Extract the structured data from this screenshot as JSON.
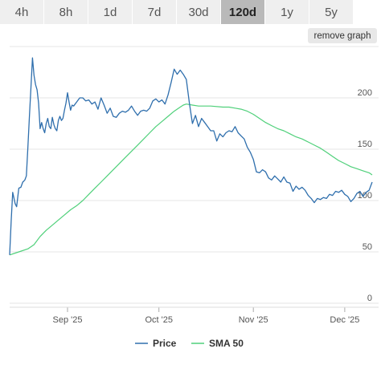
{
  "range_tabs": [
    {
      "label": "4h",
      "active": false
    },
    {
      "label": "8h",
      "active": false
    },
    {
      "label": "1d",
      "active": false
    },
    {
      "label": "7d",
      "active": false
    },
    {
      "label": "30d",
      "active": false
    },
    {
      "label": "120d",
      "active": true
    },
    {
      "label": "1y",
      "active": false
    },
    {
      "label": "5y",
      "active": false
    }
  ],
  "remove_graph_label": "remove graph",
  "chart_data": {
    "type": "line",
    "x_ticks": [
      {
        "label": "Sep '25",
        "x": 19
      },
      {
        "label": "Oct '25",
        "x": 49
      },
      {
        "label": "Nov '25",
        "x": 80
      },
      {
        "label": "Dec '25",
        "x": 110
      }
    ],
    "ylim": [
      0,
      250
    ],
    "y_ticks": [
      0,
      50,
      100,
      150,
      200
    ],
    "grid": true,
    "legend_position": "bottom",
    "colors": {
      "price": "#2f6fad",
      "sma": "#4fd07a",
      "grid": "#e6e6e6"
    },
    "series": [
      {
        "name": "Price",
        "color": "#2f6fad",
        "points": [
          [
            0,
            47
          ],
          [
            0.5,
            80
          ],
          [
            1,
            108
          ],
          [
            1.8,
            97
          ],
          [
            2.3,
            94
          ],
          [
            3,
            112
          ],
          [
            3.7,
            113
          ],
          [
            4.3,
            118
          ],
          [
            5,
            120
          ],
          [
            5.5,
            124
          ],
          [
            6,
            152
          ],
          [
            6.5,
            182
          ],
          [
            7,
            210
          ],
          [
            7.5,
            239
          ],
          [
            8,
            222
          ],
          [
            8.5,
            213
          ],
          [
            9,
            208
          ],
          [
            9.5,
            195
          ],
          [
            10,
            170
          ],
          [
            10.5,
            176
          ],
          [
            11,
            170
          ],
          [
            11.5,
            166
          ],
          [
            12,
            175
          ],
          [
            12.5,
            180
          ],
          [
            13,
            172
          ],
          [
            13.5,
            170
          ],
          [
            14,
            181
          ],
          [
            14.5,
            174
          ],
          [
            15,
            170
          ],
          [
            15.5,
            168
          ],
          [
            16,
            178
          ],
          [
            16.5,
            182
          ],
          [
            17,
            178
          ],
          [
            17.5,
            180
          ],
          [
            18,
            188
          ],
          [
            18.5,
            195
          ],
          [
            19,
            205
          ],
          [
            19.5,
            196
          ],
          [
            20,
            188
          ],
          [
            20.5,
            193
          ],
          [
            21,
            192
          ],
          [
            22,
            196
          ],
          [
            23,
            200
          ],
          [
            24,
            200
          ],
          [
            25,
            197
          ],
          [
            26,
            198
          ],
          [
            27,
            194
          ],
          [
            28,
            196
          ],
          [
            29,
            189
          ],
          [
            30,
            200
          ],
          [
            31,
            193
          ],
          [
            32,
            185
          ],
          [
            33,
            190
          ],
          [
            34,
            182
          ],
          [
            35,
            181
          ],
          [
            36,
            185
          ],
          [
            37,
            187
          ],
          [
            38,
            186
          ],
          [
            39,
            188
          ],
          [
            40,
            192
          ],
          [
            41,
            187
          ],
          [
            42,
            183
          ],
          [
            43,
            187
          ],
          [
            44,
            188
          ],
          [
            45,
            187
          ],
          [
            46,
            190
          ],
          [
            47,
            197
          ],
          [
            48,
            199
          ],
          [
            49,
            196
          ],
          [
            50,
            198
          ],
          [
            51,
            194
          ],
          [
            52,
            203
          ],
          [
            53,
            215
          ],
          [
            54,
            228
          ],
          [
            55,
            223
          ],
          [
            56,
            227
          ],
          [
            57,
            223
          ],
          [
            58,
            218
          ],
          [
            59,
            195
          ],
          [
            60,
            175
          ],
          [
            61,
            183
          ],
          [
            62,
            172
          ],
          [
            63,
            180
          ],
          [
            64,
            176
          ],
          [
            65,
            172
          ],
          [
            66,
            168
          ],
          [
            67,
            168
          ],
          [
            68,
            158
          ],
          [
            69,
            165
          ],
          [
            70,
            162
          ],
          [
            71,
            166
          ],
          [
            72,
            168
          ],
          [
            73,
            167
          ],
          [
            74,
            172
          ],
          [
            75,
            166
          ],
          [
            76,
            163
          ],
          [
            77,
            160
          ],
          [
            78,
            152
          ],
          [
            79,
            147
          ],
          [
            80,
            140
          ],
          [
            81,
            128
          ],
          [
            82,
            127
          ],
          [
            83,
            130
          ],
          [
            84,
            128
          ],
          [
            85,
            122
          ],
          [
            86,
            120
          ],
          [
            87,
            124
          ],
          [
            88,
            121
          ],
          [
            89,
            118
          ],
          [
            90,
            123
          ],
          [
            91,
            118
          ],
          [
            92,
            117
          ],
          [
            93,
            109
          ],
          [
            94,
            114
          ],
          [
            95,
            111
          ],
          [
            96,
            113
          ],
          [
            97,
            110
          ],
          [
            98,
            105
          ],
          [
            99,
            102
          ],
          [
            100,
            98
          ],
          [
            101,
            102
          ],
          [
            102,
            101
          ],
          [
            103,
            103
          ],
          [
            104,
            102
          ],
          [
            105,
            106
          ],
          [
            106,
            105
          ],
          [
            107,
            109
          ],
          [
            108,
            108
          ],
          [
            109,
            110
          ],
          [
            110,
            106
          ],
          [
            111,
            104
          ],
          [
            112,
            99
          ],
          [
            113,
            102
          ],
          [
            114,
            107
          ],
          [
            115,
            109
          ],
          [
            116,
            104
          ],
          [
            117,
            108
          ],
          [
            118,
            110
          ],
          [
            119,
            118
          ]
        ]
      },
      {
        "name": "SMA 50",
        "color": "#4fd07a",
        "points": [
          [
            0,
            47
          ],
          [
            3,
            50
          ],
          [
            6,
            53
          ],
          [
            8,
            57
          ],
          [
            10,
            65
          ],
          [
            12,
            71
          ],
          [
            14,
            76
          ],
          [
            16,
            81
          ],
          [
            18,
            86
          ],
          [
            20,
            91
          ],
          [
            22,
            95
          ],
          [
            24,
            100
          ],
          [
            26,
            106
          ],
          [
            28,
            112
          ],
          [
            30,
            118
          ],
          [
            32,
            124
          ],
          [
            34,
            130
          ],
          [
            36,
            136
          ],
          [
            38,
            142
          ],
          [
            40,
            148
          ],
          [
            42,
            154
          ],
          [
            44,
            160
          ],
          [
            46,
            166
          ],
          [
            48,
            172
          ],
          [
            50,
            177
          ],
          [
            52,
            182
          ],
          [
            54,
            187
          ],
          [
            56,
            191
          ],
          [
            57,
            193
          ],
          [
            58,
            194
          ],
          [
            60,
            193
          ],
          [
            62,
            192
          ],
          [
            66,
            192
          ],
          [
            70,
            191
          ],
          [
            72,
            191
          ],
          [
            74,
            190
          ],
          [
            76,
            189
          ],
          [
            78,
            187
          ],
          [
            80,
            184
          ],
          [
            82,
            180
          ],
          [
            84,
            176
          ],
          [
            86,
            173
          ],
          [
            88,
            170
          ],
          [
            90,
            168
          ],
          [
            92,
            165
          ],
          [
            94,
            162
          ],
          [
            96,
            160
          ],
          [
            98,
            157
          ],
          [
            100,
            154
          ],
          [
            102,
            151
          ],
          [
            104,
            147
          ],
          [
            106,
            143
          ],
          [
            108,
            139
          ],
          [
            110,
            136
          ],
          [
            112,
            133
          ],
          [
            114,
            131
          ],
          [
            116,
            129
          ],
          [
            118,
            127
          ],
          [
            119,
            125
          ]
        ]
      }
    ]
  }
}
